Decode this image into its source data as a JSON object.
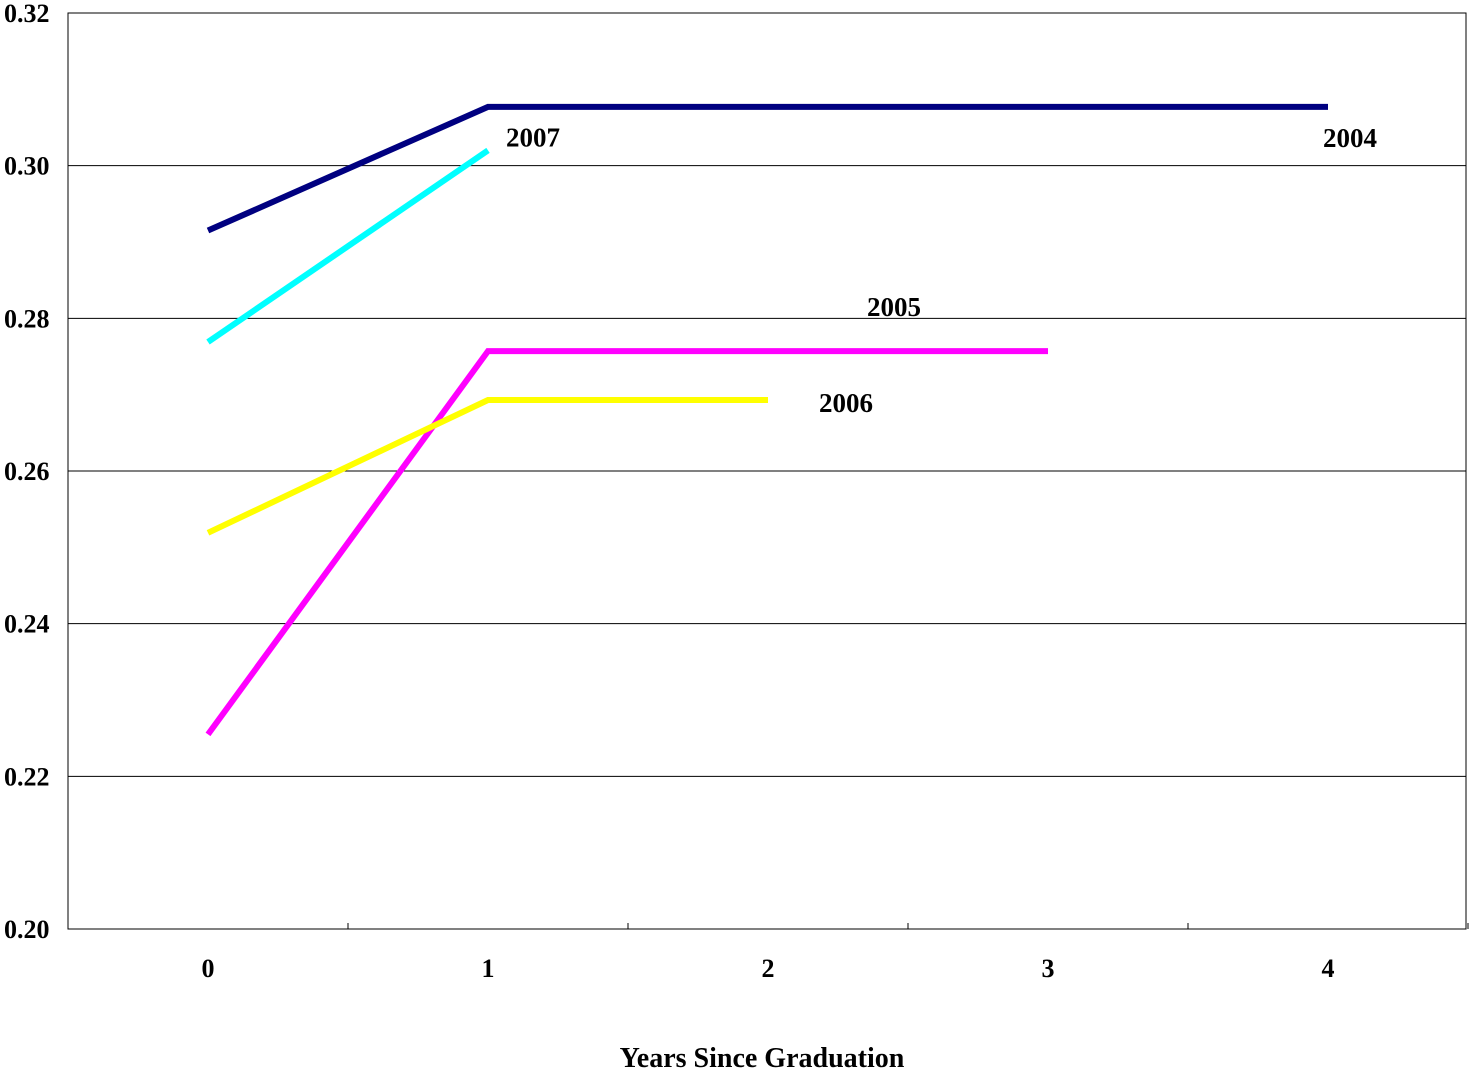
{
  "chart_data": {
    "type": "line",
    "title": "",
    "xlabel": "Years Since Graduation",
    "ylabel": "",
    "x": [
      0,
      1,
      2,
      3,
      4
    ],
    "x_tick_labels": [
      "0",
      "1",
      "2",
      "3",
      "4"
    ],
    "ylim": [
      0.2,
      0.32
    ],
    "y_ticks": [
      0.2,
      0.22,
      0.24,
      0.26,
      0.28,
      0.3,
      0.32
    ],
    "y_tick_labels": [
      "0.20",
      "0.22",
      "0.24",
      "0.26",
      "0.28",
      "0.30",
      "0.32"
    ],
    "grid": "horizontal",
    "legend": "none (series labeled inline)",
    "series": [
      {
        "name": "2004",
        "color": "#000080",
        "x": [
          0,
          1,
          2,
          3,
          4
        ],
        "values": [
          0.2915,
          0.3077,
          0.3077,
          0.3077,
          0.3077
        ]
      },
      {
        "name": "2005",
        "color": "#ff00ff",
        "x": [
          0,
          1,
          2,
          3
        ],
        "values": [
          0.2255,
          0.2757,
          0.2757,
          0.2757
        ]
      },
      {
        "name": "2006",
        "color": "#ffff00",
        "x": [
          0,
          1,
          2
        ],
        "values": [
          0.2519,
          0.2693,
          0.2693
        ]
      },
      {
        "name": "2007",
        "color": "#00ffff",
        "x": [
          0,
          1
        ],
        "values": [
          0.2769,
          0.302
        ]
      }
    ]
  }
}
